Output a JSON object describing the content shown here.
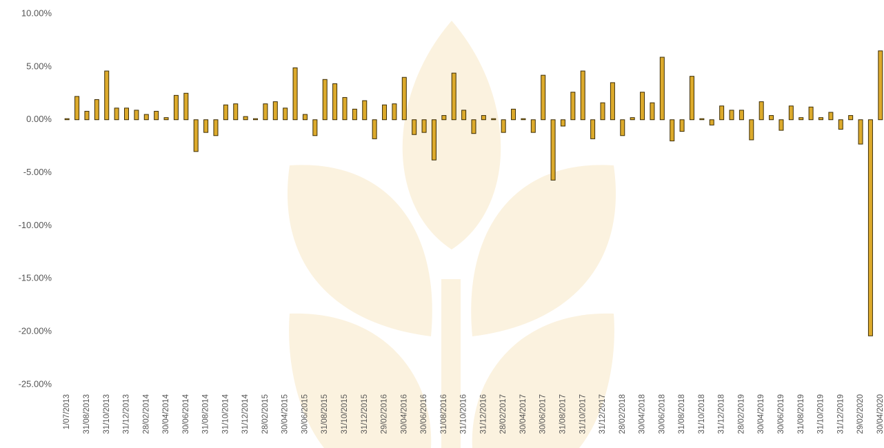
{
  "chart_data": {
    "type": "bar",
    "categories": [
      "1/07/2013",
      null,
      "31/08/2013",
      null,
      "31/10/2013",
      null,
      "31/12/2013",
      null,
      "28/02/2014",
      null,
      "30/04/2014",
      null,
      "30/06/2014",
      null,
      "31/08/2014",
      null,
      "31/10/2014",
      null,
      "31/12/2014",
      null,
      "28/02/2015",
      null,
      "30/04/2015",
      null,
      "30/06/2015",
      null,
      "31/08/2015",
      null,
      "31/10/2015",
      null,
      "31/12/2015",
      null,
      "29/02/2016",
      null,
      "30/04/2016",
      null,
      "30/06/2016",
      null,
      "31/08/2016",
      null,
      "31/10/2016",
      null,
      "31/12/2016",
      null,
      "28/02/2017",
      null,
      "30/04/2017",
      null,
      "30/06/2017",
      null,
      "31/08/2017",
      null,
      "31/10/2017",
      null,
      "31/12/2017",
      null,
      "28/02/2018",
      null,
      "30/04/2018",
      null,
      "30/06/2018",
      null,
      "31/08/2018",
      null,
      "31/10/2018",
      null,
      "31/12/2018",
      null,
      "28/02/2019",
      null,
      "30/04/2019",
      null,
      "30/06/2019",
      null,
      "31/08/2019",
      null,
      "31/10/2019",
      null,
      "31/12/2019",
      null,
      "29/02/2020",
      null,
      "30/04/2020"
    ],
    "values": [
      0.1,
      2.2,
      0.8,
      1.9,
      4.6,
      1.1,
      1.1,
      0.9,
      0.5,
      0.8,
      0.2,
      2.3,
      2.5,
      -3.0,
      -1.2,
      -1.5,
      1.4,
      1.5,
      0.3,
      0.1,
      1.5,
      1.7,
      1.1,
      4.9,
      0.5,
      -1.5,
      3.8,
      3.4,
      2.1,
      1.0,
      1.8,
      -1.8,
      1.4,
      1.5,
      4.0,
      -1.4,
      -1.2,
      -3.8,
      0.4,
      4.4,
      0.9,
      -1.3,
      0.4,
      0.1,
      -1.2,
      1.0,
      0.1,
      -1.2,
      4.2,
      -5.7,
      -0.6,
      2.6,
      4.6,
      -1.8,
      1.6,
      3.5,
      -1.5,
      0.2,
      2.6,
      1.6,
      5.9,
      -2.0,
      -1.1,
      4.1,
      0.1,
      -0.5,
      1.3,
      0.9,
      0.9,
      -1.9,
      1.7,
      0.4,
      -1.0,
      1.3,
      0.2,
      1.2,
      0.2,
      0.7,
      -0.9,
      0.4,
      -2.3,
      -20.4,
      6.5
    ],
    "color": "#dcaa2c",
    "ylim": [
      -25,
      10
    ],
    "yticks": [
      {
        "value": 10,
        "label": "10.00%"
      },
      {
        "value": 5,
        "label": "5.00%"
      },
      {
        "value": 0,
        "label": "0.00%"
      },
      {
        "value": -5,
        "label": "-5.00%"
      },
      {
        "value": -10,
        "label": "-10.00%"
      },
      {
        "value": -15,
        "label": "-15.00%"
      },
      {
        "value": -20,
        "label": "-20.00%"
      },
      {
        "value": -25,
        "label": "-25.00%"
      }
    ],
    "grid": false
  }
}
